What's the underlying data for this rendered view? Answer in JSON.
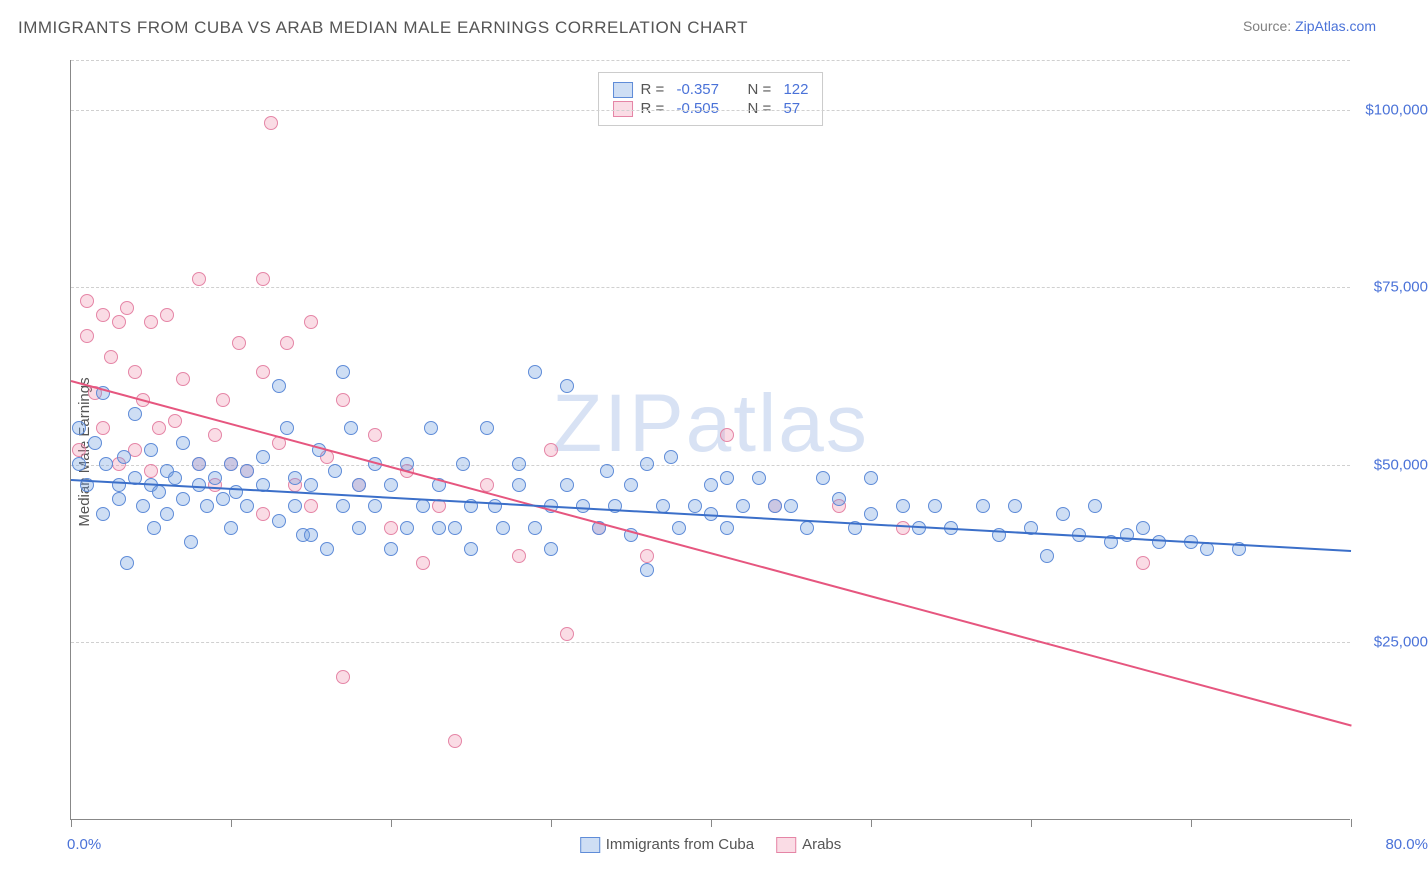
{
  "title": "IMMIGRANTS FROM CUBA VS ARAB MEDIAN MALE EARNINGS CORRELATION CHART",
  "source_label": "Source: ",
  "source_link": "ZipAtlas.com",
  "ylabel": "Median Male Earnings",
  "watermark": "ZIPatlas",
  "chart": {
    "type": "scatter",
    "xlim": [
      0,
      80
    ],
    "ylim": [
      0,
      107000
    ],
    "x_axis_min_label": "0.0%",
    "x_axis_max_label": "80.0%",
    "xtick_positions": [
      0,
      10,
      20,
      30,
      40,
      50,
      60,
      70,
      80
    ],
    "y_gridlines": [
      25000,
      50000,
      75000,
      100000,
      107000
    ],
    "y_tick_labels": [
      "$25,000",
      "$50,000",
      "$75,000",
      "$100,000"
    ],
    "background_color": "#ffffff",
    "grid_color": "#d0d0d0",
    "axis_color": "#888888",
    "label_color": "#4a72d8",
    "marker_radius": 7,
    "series": [
      {
        "name": "Immigrants from Cuba",
        "fill": "rgba(116,160,224,0.35)",
        "stroke": "#5f8cd8",
        "line_color": "#3b6fc9",
        "R": "-0.357",
        "N": "122",
        "trend": {
          "x1": 0,
          "y1": 48000,
          "x2": 80,
          "y2": 38000
        },
        "points": [
          [
            0.5,
            55000
          ],
          [
            0.5,
            50000
          ],
          [
            1,
            47000
          ],
          [
            1.5,
            53000
          ],
          [
            2,
            43000
          ],
          [
            2,
            60000
          ],
          [
            2.2,
            50000
          ],
          [
            3,
            47000
          ],
          [
            3,
            45000
          ],
          [
            3.3,
            51000
          ],
          [
            3.5,
            36000
          ],
          [
            4,
            48000
          ],
          [
            4,
            57000
          ],
          [
            4.5,
            44000
          ],
          [
            5,
            47000
          ],
          [
            5,
            52000
          ],
          [
            5.2,
            41000
          ],
          [
            5.5,
            46000
          ],
          [
            6,
            49000
          ],
          [
            6,
            43000
          ],
          [
            6.5,
            48000
          ],
          [
            7,
            45000
          ],
          [
            7,
            53000
          ],
          [
            7.5,
            39000
          ],
          [
            8,
            47000
          ],
          [
            8,
            50000
          ],
          [
            8.5,
            44000
          ],
          [
            9,
            48000
          ],
          [
            9.5,
            45000
          ],
          [
            10,
            41000
          ],
          [
            10,
            50000
          ],
          [
            10.3,
            46000
          ],
          [
            11,
            49000
          ],
          [
            11,
            44000
          ],
          [
            12,
            47000
          ],
          [
            12,
            51000
          ],
          [
            13,
            42000
          ],
          [
            13,
            61000
          ],
          [
            13.5,
            55000
          ],
          [
            14,
            48000
          ],
          [
            14,
            44000
          ],
          [
            14.5,
            40000
          ],
          [
            15,
            40000
          ],
          [
            15,
            47000
          ],
          [
            15.5,
            52000
          ],
          [
            16,
            38000
          ],
          [
            16.5,
            49000
          ],
          [
            17,
            44000
          ],
          [
            17,
            63000
          ],
          [
            17.5,
            55000
          ],
          [
            18,
            41000
          ],
          [
            18,
            47000
          ],
          [
            19,
            50000
          ],
          [
            19,
            44000
          ],
          [
            20,
            38000
          ],
          [
            20,
            47000
          ],
          [
            21,
            41000
          ],
          [
            21,
            50000
          ],
          [
            22,
            44000
          ],
          [
            22.5,
            55000
          ],
          [
            23,
            41000
          ],
          [
            23,
            47000
          ],
          [
            24,
            41000
          ],
          [
            24.5,
            50000
          ],
          [
            25,
            44000
          ],
          [
            25,
            38000
          ],
          [
            26,
            55000
          ],
          [
            26.5,
            44000
          ],
          [
            27,
            41000
          ],
          [
            28,
            47000
          ],
          [
            28,
            50000
          ],
          [
            29,
            41000
          ],
          [
            29,
            63000
          ],
          [
            30,
            44000
          ],
          [
            30,
            38000
          ],
          [
            31,
            47000
          ],
          [
            31,
            61000
          ],
          [
            32,
            44000
          ],
          [
            33,
            41000
          ],
          [
            33.5,
            49000
          ],
          [
            34,
            44000
          ],
          [
            35,
            40000
          ],
          [
            35,
            47000
          ],
          [
            36,
            35000
          ],
          [
            36,
            50000
          ],
          [
            37,
            44000
          ],
          [
            37.5,
            51000
          ],
          [
            38,
            41000
          ],
          [
            39,
            44000
          ],
          [
            40,
            47000
          ],
          [
            40,
            43000
          ],
          [
            41,
            48000
          ],
          [
            41,
            41000
          ],
          [
            42,
            44000
          ],
          [
            43,
            48000
          ],
          [
            44,
            44000
          ],
          [
            45,
            44000
          ],
          [
            46,
            41000
          ],
          [
            47,
            48000
          ],
          [
            48,
            45000
          ],
          [
            49,
            41000
          ],
          [
            50,
            48000
          ],
          [
            50,
            43000
          ],
          [
            52,
            44000
          ],
          [
            53,
            41000
          ],
          [
            54,
            44000
          ],
          [
            55,
            41000
          ],
          [
            57,
            44000
          ],
          [
            58,
            40000
          ],
          [
            59,
            44000
          ],
          [
            60,
            41000
          ],
          [
            61,
            37000
          ],
          [
            62,
            43000
          ],
          [
            63,
            40000
          ],
          [
            64,
            44000
          ],
          [
            65,
            39000
          ],
          [
            66,
            40000
          ],
          [
            67,
            41000
          ],
          [
            68,
            39000
          ],
          [
            70,
            39000
          ],
          [
            71,
            38000
          ],
          [
            73,
            38000
          ]
        ]
      },
      {
        "name": "Arabs",
        "fill": "rgba(237,140,170,0.30)",
        "stroke": "#e585a6",
        "line_color": "#e6567f",
        "R": "-0.505",
        "N": "57",
        "trend": {
          "x1": 0,
          "y1": 62000,
          "x2": 80,
          "y2": 13500
        },
        "points": [
          [
            0.5,
            52000
          ],
          [
            1,
            68000
          ],
          [
            1,
            73000
          ],
          [
            1.5,
            60000
          ],
          [
            2,
            71000
          ],
          [
            2,
            55000
          ],
          [
            2.5,
            65000
          ],
          [
            3,
            70000
          ],
          [
            3,
            50000
          ],
          [
            3.5,
            72000
          ],
          [
            4,
            63000
          ],
          [
            4,
            52000
          ],
          [
            4.5,
            59000
          ],
          [
            5,
            70000
          ],
          [
            5,
            49000
          ],
          [
            5.5,
            55000
          ],
          [
            6,
            71000
          ],
          [
            6.5,
            56000
          ],
          [
            7,
            62000
          ],
          [
            8,
            76000
          ],
          [
            8,
            50000
          ],
          [
            9,
            54000
          ],
          [
            9,
            47000
          ],
          [
            9.5,
            59000
          ],
          [
            10,
            50000
          ],
          [
            10.5,
            67000
          ],
          [
            11,
            49000
          ],
          [
            12,
            63000
          ],
          [
            12,
            43000
          ],
          [
            12,
            76000
          ],
          [
            12.5,
            98000
          ],
          [
            13,
            53000
          ],
          [
            13.5,
            67000
          ],
          [
            14,
            47000
          ],
          [
            15,
            70000
          ],
          [
            15,
            44000
          ],
          [
            16,
            51000
          ],
          [
            17,
            59000
          ],
          [
            17,
            20000
          ],
          [
            18,
            47000
          ],
          [
            19,
            54000
          ],
          [
            20,
            41000
          ],
          [
            21,
            49000
          ],
          [
            22,
            36000
          ],
          [
            23,
            44000
          ],
          [
            24,
            11000
          ],
          [
            26,
            47000
          ],
          [
            28,
            37000
          ],
          [
            30,
            52000
          ],
          [
            31,
            26000
          ],
          [
            33,
            41000
          ],
          [
            36,
            37000
          ],
          [
            41,
            54000
          ],
          [
            44,
            44000
          ],
          [
            48,
            44000
          ],
          [
            52,
            41000
          ],
          [
            67,
            36000
          ]
        ]
      }
    ]
  },
  "legend_labels": {
    "series1": "Immigrants from Cuba",
    "series2": "Arabs",
    "R_label": "R = ",
    "N_label": "N = "
  }
}
